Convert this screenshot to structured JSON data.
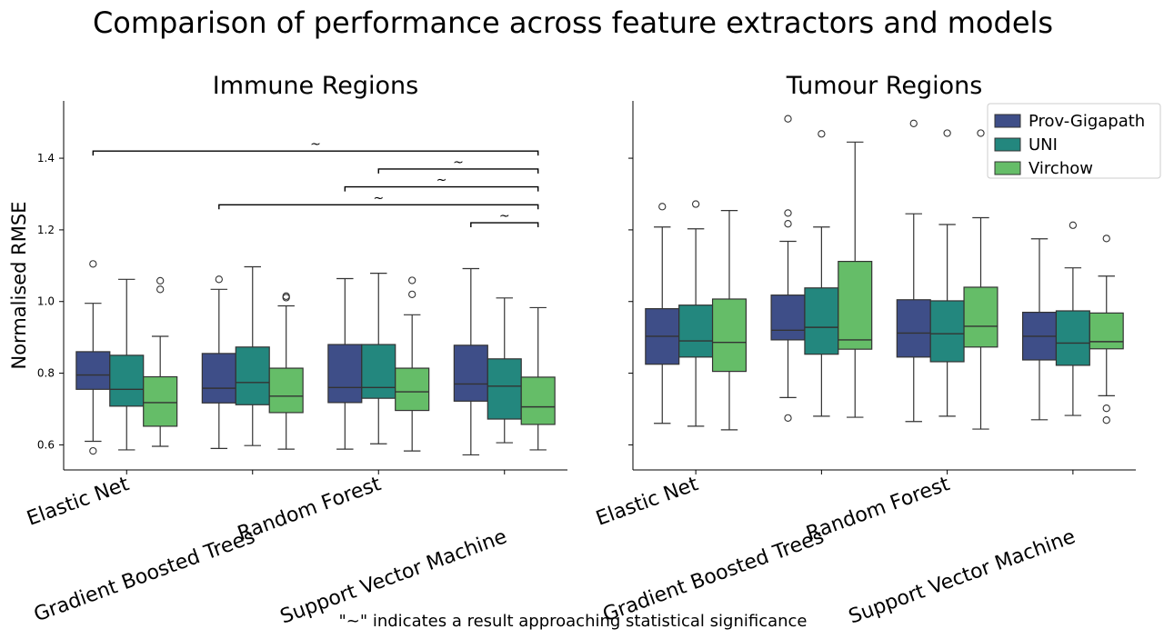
{
  "figure": {
    "title": "Comparison of performance across feature extractors and models",
    "footnote": "\"~\" indicates a result approaching statistical significance"
  },
  "legend": {
    "placement": "top-right of right panel",
    "entries": [
      {
        "name": "Prov-Gigapath",
        "color": "#3e4e88"
      },
      {
        "name": "UNI",
        "color": "#23877e"
      },
      {
        "name": "Virchow",
        "color": "#65bd68"
      }
    ]
  },
  "chart_data": [
    {
      "type": "box",
      "title": "Immune Regions",
      "ylabel": "Normalised RMSE",
      "ylim": [
        0.53,
        1.56
      ],
      "yticks": [
        0.6,
        0.8,
        1.0,
        1.2,
        1.4
      ],
      "grid": false,
      "categories": [
        "Elastic Net",
        "Gradient Boosted Trees",
        "Random Forest",
        "Support Vector Machine"
      ],
      "hue": [
        "Prov-Gigapath",
        "UNI",
        "Virchow"
      ],
      "boxes": [
        [
          {
            "whislo": 0.61,
            "q1": 0.755,
            "med": 0.795,
            "q3": 0.86,
            "whishi": 0.995,
            "fliers": [
              1.105,
              0.583
            ]
          },
          {
            "whislo": 0.586,
            "q1": 0.708,
            "med": 0.755,
            "q3": 0.85,
            "whishi": 1.062,
            "fliers": []
          },
          {
            "whislo": 0.596,
            "q1": 0.652,
            "med": 0.718,
            "q3": 0.79,
            "whishi": 0.903,
            "fliers": [
              1.058,
              1.034
            ]
          }
        ],
        [
          {
            "whislo": 0.59,
            "q1": 0.717,
            "med": 0.758,
            "q3": 0.855,
            "whishi": 1.034,
            "fliers": [
              1.062
            ]
          },
          {
            "whislo": 0.598,
            "q1": 0.712,
            "med": 0.774,
            "q3": 0.873,
            "whishi": 1.097,
            "fliers": []
          },
          {
            "whislo": 0.588,
            "q1": 0.69,
            "med": 0.736,
            "q3": 0.814,
            "whishi": 0.988,
            "fliers": [
              1.011,
              1.015
            ]
          }
        ],
        [
          {
            "whislo": 0.588,
            "q1": 0.718,
            "med": 0.76,
            "q3": 0.88,
            "whishi": 1.064,
            "fliers": []
          },
          {
            "whislo": 0.603,
            "q1": 0.73,
            "med": 0.76,
            "q3": 0.88,
            "whishi": 1.079,
            "fliers": []
          },
          {
            "whislo": 0.583,
            "q1": 0.696,
            "med": 0.748,
            "q3": 0.814,
            "whishi": 0.963,
            "fliers": [
              1.059,
              1.02
            ]
          }
        ],
        [
          {
            "whislo": 0.572,
            "q1": 0.722,
            "med": 0.77,
            "q3": 0.878,
            "whishi": 1.092,
            "fliers": []
          },
          {
            "whislo": 0.606,
            "q1": 0.672,
            "med": 0.764,
            "q3": 0.84,
            "whishi": 1.01,
            "fliers": []
          },
          {
            "whislo": 0.586,
            "q1": 0.657,
            "med": 0.706,
            "q3": 0.789,
            "whishi": 0.983,
            "fliers": []
          }
        ]
      ],
      "annotations": [
        {
          "from": [
            0,
            0
          ],
          "to": [
            3,
            2
          ],
          "y": 1.42,
          "label": "~"
        },
        {
          "from": [
            2,
            1
          ],
          "to": [
            3,
            2
          ],
          "y": 1.37,
          "label": "~"
        },
        {
          "from": [
            2,
            0
          ],
          "to": [
            3,
            2
          ],
          "y": 1.32,
          "label": "~"
        },
        {
          "from": [
            1,
            0
          ],
          "to": [
            3,
            2
          ],
          "y": 1.27,
          "label": "~"
        },
        {
          "from": [
            3,
            0
          ],
          "to": [
            3,
            2
          ],
          "y": 1.22,
          "label": "~"
        }
      ]
    },
    {
      "type": "box",
      "title": "Tumour Regions",
      "ylabel": "",
      "ylim": [
        0.53,
        1.56
      ],
      "yticks": [
        0.6,
        0.8,
        1.0,
        1.2,
        1.4
      ],
      "grid": false,
      "categories": [
        "Elastic Net",
        "Gradient Boosted Trees",
        "Random Forest",
        "Support Vector Machine"
      ],
      "hue": [
        "Prov-Gigapath",
        "UNI",
        "Virchow"
      ],
      "boxes": [
        [
          {
            "whislo": 0.66,
            "q1": 0.825,
            "med": 0.903,
            "q3": 0.98,
            "whishi": 1.208,
            "fliers": [
              1.265
            ]
          },
          {
            "whislo": 0.652,
            "q1": 0.845,
            "med": 0.89,
            "q3": 0.99,
            "whishi": 1.203,
            "fliers": [
              1.272
            ]
          },
          {
            "whislo": 0.642,
            "q1": 0.805,
            "med": 0.886,
            "q3": 1.007,
            "whishi": 1.254,
            "fliers": []
          }
        ],
        [
          {
            "whislo": 0.732,
            "q1": 0.893,
            "med": 0.92,
            "q3": 1.018,
            "whishi": 1.168,
            "fliers": [
              1.51,
              1.247,
              1.217,
              0.675
            ]
          },
          {
            "whislo": 0.68,
            "q1": 0.853,
            "med": 0.928,
            "q3": 1.038,
            "whishi": 1.208,
            "fliers": [
              1.468
            ]
          },
          {
            "whislo": 0.677,
            "q1": 0.867,
            "med": 0.893,
            "q3": 1.112,
            "whishi": 1.445,
            "fliers": []
          }
        ],
        [
          {
            "whislo": 0.665,
            "q1": 0.845,
            "med": 0.912,
            "q3": 1.005,
            "whishi": 1.245,
            "fliers": [
              1.497
            ]
          },
          {
            "whislo": 0.68,
            "q1": 0.832,
            "med": 0.91,
            "q3": 1.002,
            "whishi": 1.215,
            "fliers": [
              1.47
            ]
          },
          {
            "whislo": 0.644,
            "q1": 0.873,
            "med": 0.931,
            "q3": 1.04,
            "whishi": 1.234,
            "fliers": [
              1.47
            ]
          }
        ],
        [
          {
            "whislo": 0.67,
            "q1": 0.837,
            "med": 0.903,
            "q3": 0.97,
            "whishi": 1.175,
            "fliers": []
          },
          {
            "whislo": 0.682,
            "q1": 0.822,
            "med": 0.884,
            "q3": 0.974,
            "whishi": 1.094,
            "fliers": [
              1.213
            ]
          },
          {
            "whislo": 0.737,
            "q1": 0.868,
            "med": 0.888,
            "q3": 0.968,
            "whishi": 1.071,
            "fliers": [
              0.702,
              0.669,
              1.176
            ]
          }
        ]
      ],
      "annotations": []
    }
  ]
}
